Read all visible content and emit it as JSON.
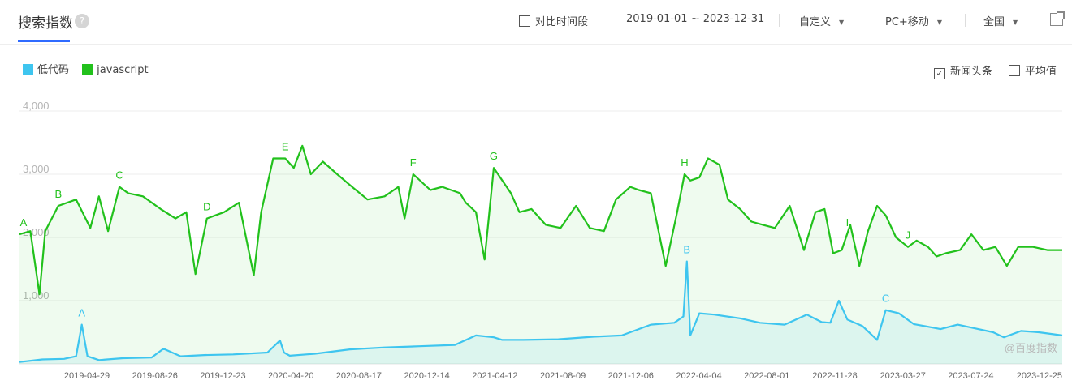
{
  "header": {
    "title": "搜索指数",
    "help_icon": "?",
    "compare_label": "对比时间段",
    "date_range": "2019-01-01 ~ 2023-12-31",
    "range_mode": "自定义",
    "device": "PC+移动",
    "region": "全国"
  },
  "legend": [
    {
      "name": "低代码",
      "color": "#3ec5ef"
    },
    {
      "name": "javascript",
      "color": "#22c11c"
    }
  ],
  "options": {
    "news_label": "新闻头条",
    "news_checked": true,
    "avg_label": "平均值",
    "avg_checked": false
  },
  "watermark": "@百度指数",
  "chart_data": {
    "type": "line",
    "ylim": [
      0,
      4000
    ],
    "yticks": [
      "1,000",
      "2,000",
      "3,000",
      "4,000"
    ],
    "yticks_values": [
      1000,
      2000,
      3000,
      4000
    ],
    "xlim": [
      "2019-01-01",
      "2023-12-31"
    ],
    "xticks": [
      "2019-04-29",
      "2019-08-26",
      "2019-12-23",
      "2020-04-20",
      "2020-08-17",
      "2020-12-14",
      "2021-04-12",
      "2021-08-09",
      "2021-12-06",
      "2022-04-04",
      "2022-08-01",
      "2022-11-28",
      "2023-03-27",
      "2023-07-24",
      "2023-12-25"
    ],
    "grid": true,
    "series": [
      {
        "name": "javascript",
        "color": "#22c11c",
        "x": [
          "2019-01-01",
          "2019-01-20",
          "2019-02-05",
          "2019-02-15",
          "2019-03-10",
          "2019-04-10",
          "2019-05-05",
          "2019-05-20",
          "2019-06-05",
          "2019-06-25",
          "2019-07-10",
          "2019-08-05",
          "2019-09-05",
          "2019-10-01",
          "2019-10-20",
          "2019-11-05",
          "2019-11-25",
          "2019-12-10",
          "2019-12-25",
          "2020-01-20",
          "2020-02-15",
          "2020-02-28",
          "2020-03-20",
          "2020-04-10",
          "2020-04-25",
          "2020-05-10",
          "2020-05-25",
          "2020-06-15",
          "2020-07-10",
          "2020-08-05",
          "2020-09-01",
          "2020-10-01",
          "2020-10-25",
          "2020-11-05",
          "2020-11-20",
          "2020-12-20",
          "2021-01-10",
          "2021-02-10",
          "2021-02-20",
          "2021-03-10",
          "2021-03-25",
          "2021-04-10",
          "2021-04-25",
          "2021-05-10",
          "2021-05-25",
          "2021-06-15",
          "2021-07-10",
          "2021-08-05",
          "2021-09-01",
          "2021-09-25",
          "2021-10-20",
          "2021-11-10",
          "2021-12-05",
          "2021-12-20",
          "2022-01-10",
          "2022-02-05",
          "2022-02-25",
          "2022-03-10",
          "2022-03-20",
          "2022-04-05",
          "2022-04-20",
          "2022-05-10",
          "2022-05-25",
          "2022-06-15",
          "2022-07-05",
          "2022-07-25",
          "2022-08-15",
          "2022-09-10",
          "2022-10-05",
          "2022-10-25",
          "2022-11-10",
          "2022-11-25",
          "2022-12-10",
          "2022-12-25",
          "2023-01-10",
          "2023-01-25",
          "2023-02-10",
          "2023-02-25",
          "2023-03-15",
          "2023-04-05",
          "2023-04-20",
          "2023-05-10",
          "2023-05-25",
          "2023-06-10",
          "2023-07-05",
          "2023-07-25",
          "2023-08-15",
          "2023-09-05",
          "2023-09-25",
          "2023-10-15",
          "2023-11-10",
          "2023-12-05",
          "2023-12-31"
        ],
        "y": [
          2050,
          2100,
          1100,
          2100,
          2500,
          2600,
          2150,
          2650,
          2100,
          2800,
          2700,
          2650,
          2450,
          2300,
          2400,
          1420,
          2300,
          2350,
          2400,
          2550,
          1400,
          2400,
          3250,
          3250,
          3100,
          3450,
          3000,
          3200,
          3000,
          2800,
          2600,
          2650,
          2800,
          2300,
          3000,
          2750,
          2800,
          2700,
          2550,
          2400,
          1650,
          3100,
          2900,
          2700,
          2400,
          2450,
          2200,
          2150,
          2500,
          2150,
          2100,
          2600,
          2800,
          2750,
          2700,
          1550,
          2400,
          3000,
          2900,
          2950,
          3250,
          3150,
          2600,
          2450,
          2250,
          2200,
          2150,
          2500,
          1800,
          2400,
          2450,
          1750,
          1800,
          2200,
          1550,
          2100,
          2500,
          2350,
          2000,
          1850,
          1950,
          1850,
          1700,
          1750,
          1800,
          2050,
          1800,
          1850,
          1550,
          1850,
          1850,
          1800,
          1800
        ]
      },
      {
        "name": "低代码",
        "color": "#3ec5ef",
        "x": [
          "2019-01-01",
          "2019-02-10",
          "2019-03-20",
          "2019-04-10",
          "2019-04-20",
          "2019-04-30",
          "2019-05-20",
          "2019-07-01",
          "2019-08-20",
          "2019-09-10",
          "2019-10-10",
          "2019-11-20",
          "2020-01-10",
          "2020-03-10",
          "2020-04-01",
          "2020-04-08",
          "2020-04-18",
          "2020-06-01",
          "2020-08-01",
          "2020-10-01",
          "2020-12-01",
          "2021-02-01",
          "2021-03-10",
          "2021-04-10",
          "2021-04-25",
          "2021-06-01",
          "2021-08-01",
          "2021-10-01",
          "2021-11-20",
          "2022-01-10",
          "2022-02-20",
          "2022-03-08",
          "2022-03-14",
          "2022-03-20",
          "2022-04-05",
          "2022-05-01",
          "2022-06-15",
          "2022-07-20",
          "2022-09-01",
          "2022-10-10",
          "2022-11-05",
          "2022-11-20",
          "2022-12-05",
          "2022-12-20",
          "2023-01-15",
          "2023-02-10",
          "2023-02-25",
          "2023-03-20",
          "2023-04-15",
          "2023-05-15",
          "2023-06-01",
          "2023-07-01",
          "2023-08-01",
          "2023-09-01",
          "2023-09-20",
          "2023-10-20",
          "2023-11-20",
          "2023-12-31"
        ],
        "y": [
          30,
          70,
          80,
          120,
          620,
          120,
          60,
          90,
          100,
          240,
          120,
          140,
          150,
          180,
          370,
          180,
          130,
          160,
          230,
          260,
          280,
          300,
          450,
          420,
          380,
          380,
          390,
          430,
          450,
          620,
          650,
          750,
          1620,
          450,
          800,
          780,
          720,
          650,
          620,
          780,
          660,
          650,
          1000,
          700,
          600,
          380,
          850,
          800,
          630,
          580,
          550,
          620,
          560,
          500,
          420,
          520,
          500,
          450
        ]
      }
    ],
    "annotations": [
      {
        "series": "javascript",
        "label": "A",
        "x": "2019-01-01"
      },
      {
        "series": "javascript",
        "label": "B",
        "x": "2019-03-10"
      },
      {
        "series": "javascript",
        "label": "C",
        "x": "2019-06-25"
      },
      {
        "series": "javascript",
        "label": "D",
        "x": "2019-11-25"
      },
      {
        "series": "javascript",
        "label": "E",
        "x": "2020-04-10"
      },
      {
        "series": "javascript",
        "label": "F",
        "x": "2020-11-20"
      },
      {
        "series": "javascript",
        "label": "G",
        "x": "2021-04-10"
      },
      {
        "series": "javascript",
        "label": "H",
        "x": "2022-03-10"
      },
      {
        "series": "javascript",
        "label": "I",
        "x": "2022-12-20"
      },
      {
        "series": "javascript",
        "label": "J",
        "x": "2023-04-05"
      },
      {
        "series": "低代码",
        "label": "A",
        "x": "2019-04-20"
      },
      {
        "series": "低代码",
        "label": "B",
        "x": "2022-03-14"
      },
      {
        "series": "低代码",
        "label": "C",
        "x": "2023-02-25"
      }
    ]
  }
}
